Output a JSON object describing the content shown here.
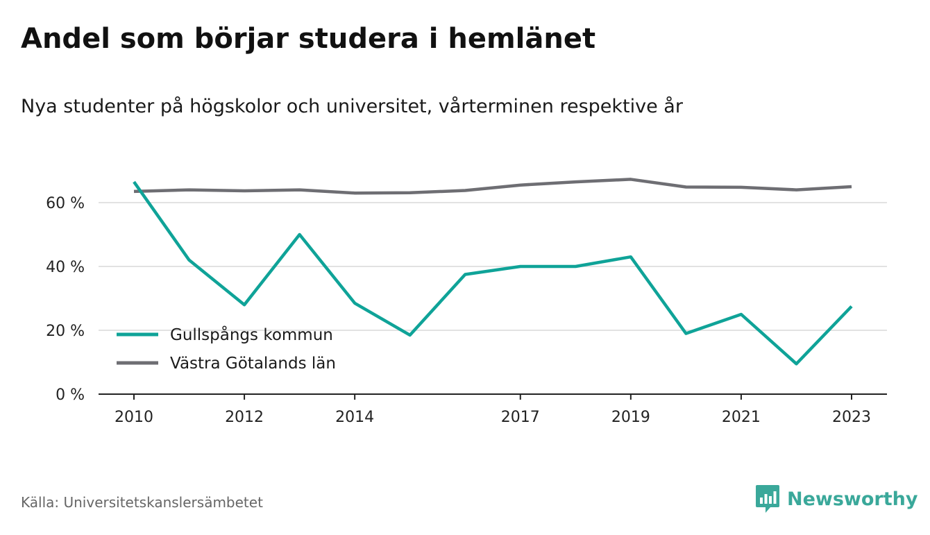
{
  "header": {
    "title": "Andel som börjar studera i hemlänet",
    "subtitle": "Nya studenter på högskolor och universitet, vårterminen respektive år"
  },
  "footer": {
    "source": "Källa: Universitetskanslersämbetet",
    "brand": "Newsworthy",
    "brand_icon": "newsworthy-logo-icon"
  },
  "colors": {
    "gullspang": "#0fa398",
    "vastra_gotaland": "#6e6e73",
    "grid": "#d9d9d9",
    "axis": "#222222",
    "brand": "#3aa89a"
  },
  "chart_data": {
    "type": "line",
    "x": [
      2010,
      2011,
      2012,
      2013,
      2014,
      2015,
      2016,
      2017,
      2018,
      2019,
      2020,
      2021,
      2022,
      2023
    ],
    "x_ticks": [
      2010,
      2012,
      2014,
      2017,
      2019,
      2021,
      2023
    ],
    "x_tick_labels": [
      "2010",
      "2012",
      "2014",
      "2017",
      "2019",
      "2021",
      "2023"
    ],
    "series": [
      {
        "name": "Gullspångs kommun",
        "color": "#0fa398",
        "values": [
          66.5,
          42,
          28,
          50,
          28.5,
          18.5,
          37.5,
          40,
          40,
          43,
          19,
          25,
          9.5,
          27.5
        ]
      },
      {
        "name": "Västra Götalands län",
        "color": "#6e6e73",
        "values": [
          63.5,
          64,
          63.7,
          64,
          63,
          63.1,
          63.8,
          65.5,
          66.5,
          67.3,
          64.9,
          64.8,
          64,
          65
        ]
      }
    ],
    "y_ticks": [
      0,
      20,
      40,
      60
    ],
    "y_tick_labels": [
      "0 %",
      "20 %",
      "40 %",
      "60 %"
    ],
    "ylim": [
      0,
      70
    ],
    "grid": true,
    "legend_position": "bottom-left"
  }
}
